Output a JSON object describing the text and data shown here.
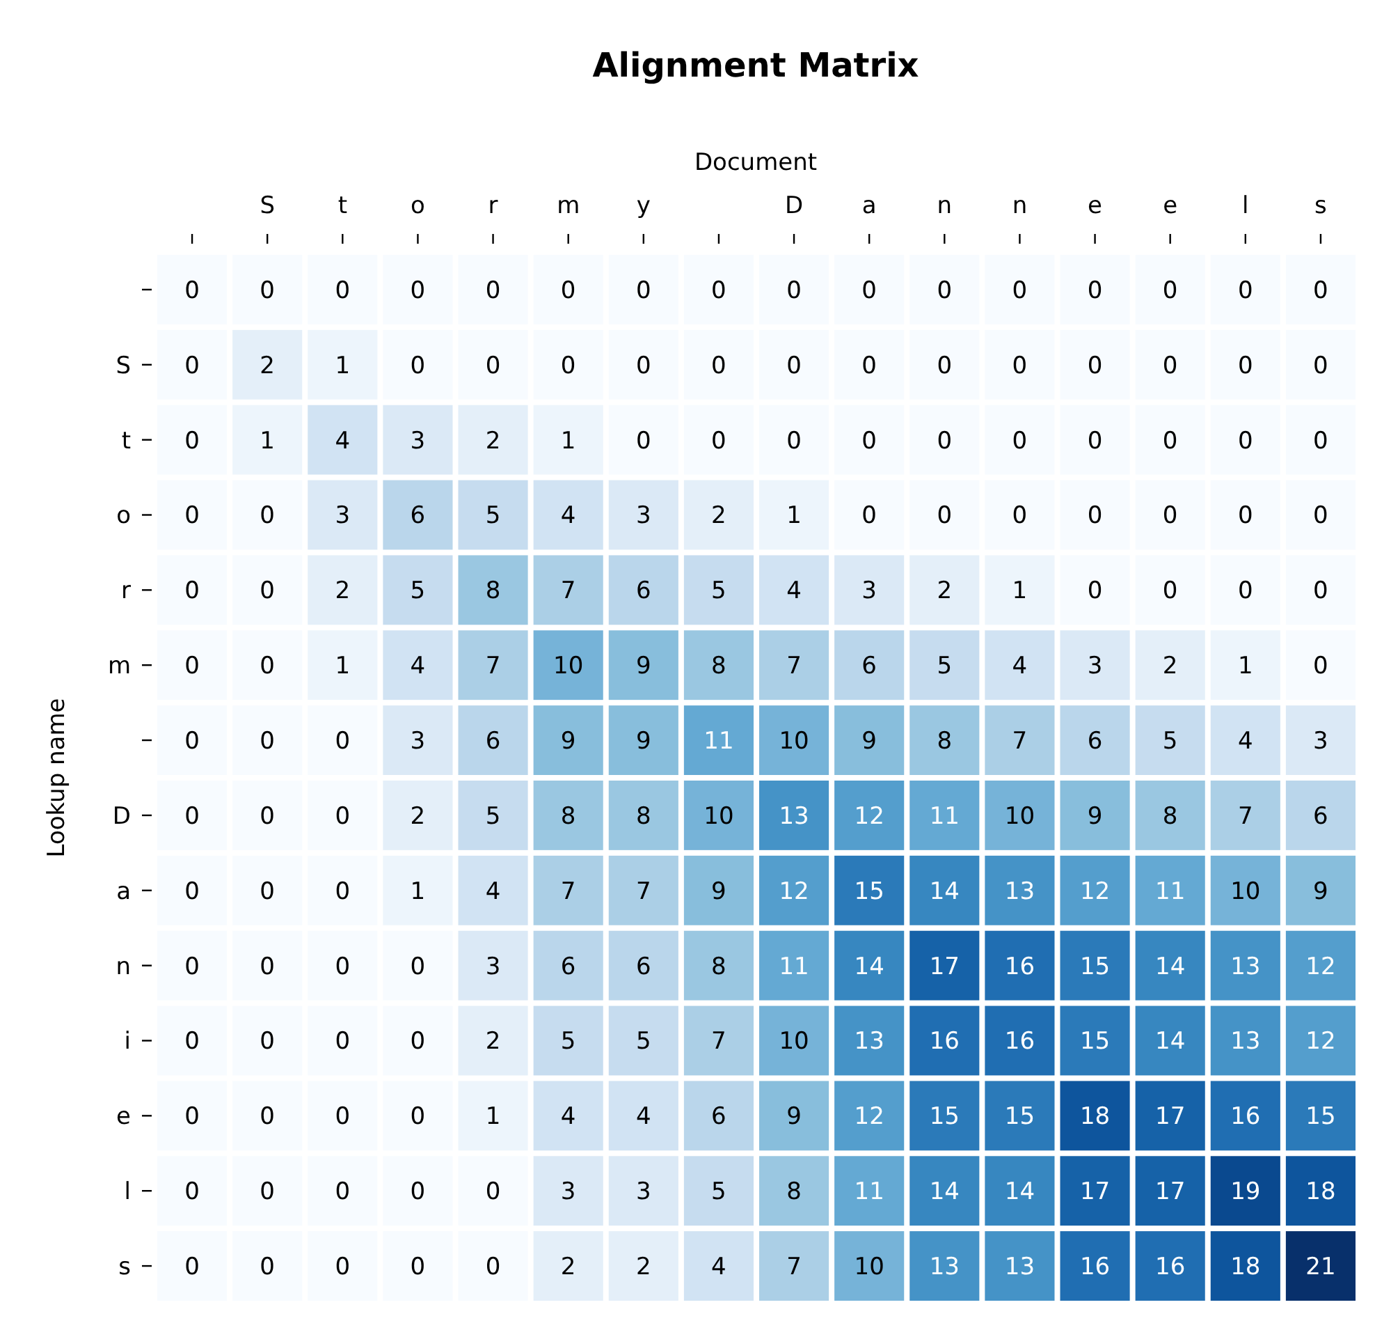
{
  "chart_data": {
    "type": "heatmap",
    "title": "Alignment Matrix",
    "xlabel": "Document",
    "ylabel": "Lookup name",
    "data_labels": true,
    "categories": [
      null,
      "S",
      "t",
      "o",
      "r",
      "m",
      "y",
      null,
      "D",
      "a",
      "n",
      "n",
      "e",
      "e",
      "l",
      "s"
    ],
    "y_categories": [
      null,
      "S",
      "t",
      "o",
      "r",
      "m",
      null,
      "D",
      "a",
      "n",
      "i",
      "e",
      "l",
      "s"
    ],
    "cells": [
      [
        0,
        0,
        0,
        0,
        0,
        0,
        0,
        0,
        0,
        0,
        0,
        0,
        0,
        0,
        0,
        0
      ],
      [
        0,
        2,
        1,
        0,
        0,
        0,
        0,
        0,
        0,
        0,
        0,
        0,
        0,
        0,
        0,
        0
      ],
      [
        0,
        1,
        4,
        3,
        2,
        1,
        0,
        0,
        0,
        0,
        0,
        0,
        0,
        0,
        0,
        0
      ],
      [
        0,
        0,
        3,
        6,
        5,
        4,
        3,
        2,
        1,
        0,
        0,
        0,
        0,
        0,
        0,
        0
      ],
      [
        0,
        0,
        2,
        5,
        8,
        7,
        6,
        5,
        4,
        3,
        2,
        1,
        0,
        0,
        0,
        0
      ],
      [
        0,
        0,
        1,
        4,
        7,
        10,
        9,
        8,
        7,
        6,
        5,
        4,
        3,
        2,
        1,
        0
      ],
      [
        0,
        0,
        0,
        3,
        6,
        9,
        9,
        11,
        10,
        9,
        8,
        7,
        6,
        5,
        4,
        3
      ],
      [
        0,
        0,
        0,
        2,
        5,
        8,
        8,
        10,
        13,
        12,
        11,
        10,
        9,
        8,
        7,
        6
      ],
      [
        0,
        0,
        0,
        1,
        4,
        7,
        7,
        9,
        12,
        15,
        14,
        13,
        12,
        11,
        10,
        9
      ],
      [
        0,
        0,
        0,
        0,
        3,
        6,
        6,
        8,
        11,
        14,
        17,
        16,
        15,
        14,
        13,
        12
      ],
      [
        0,
        0,
        0,
        0,
        2,
        5,
        5,
        7,
        10,
        13,
        16,
        16,
        15,
        14,
        13,
        12
      ],
      [
        0,
        0,
        0,
        0,
        1,
        4,
        4,
        6,
        9,
        12,
        15,
        15,
        18,
        17,
        16,
        15
      ],
      [
        0,
        0,
        0,
        0,
        0,
        3,
        3,
        5,
        8,
        11,
        14,
        14,
        17,
        17,
        19,
        18
      ],
      [
        0,
        0,
        0,
        0,
        0,
        2,
        2,
        4,
        7,
        10,
        13,
        13,
        16,
        16,
        18,
        21
      ]
    ]
  }
}
